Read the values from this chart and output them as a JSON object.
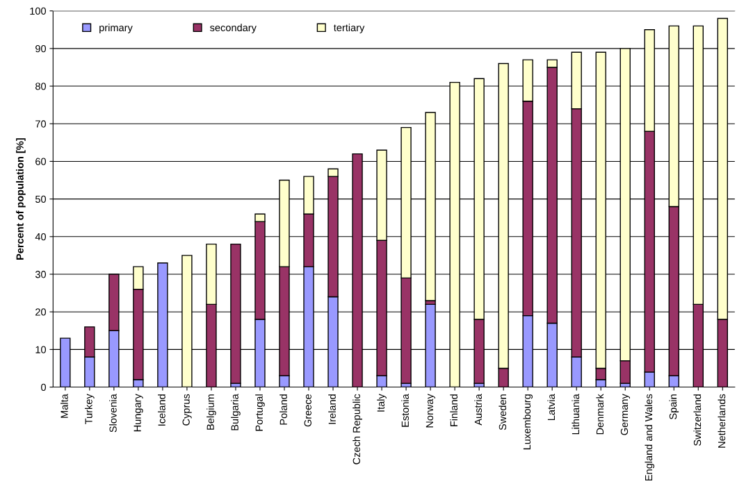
{
  "chart_data": {
    "type": "bar",
    "stacked": true,
    "ylabel": "Percent of population [%]",
    "categories": [
      "Malta",
      "Turkey",
      "Slovenia",
      "Hungary",
      "Iceland",
      "Cyprus",
      "Belgium",
      "Bulgaria",
      "Portugal",
      "Poland",
      "Greece",
      "Ireland",
      "Czech Republic",
      "Italy",
      "Estonia",
      "Norway",
      "Finland",
      "Austria",
      "Sweden",
      "Luxembourg",
      "Latvia",
      "Lithuania",
      "Denmark",
      "Germany",
      "England and Wales",
      "Spain",
      "Switzerland",
      "Netherlands"
    ],
    "series": [
      {
        "name": "primary",
        "color": "#9999ff",
        "values": [
          13,
          8,
          15,
          2,
          33,
          0,
          0,
          1,
          18,
          3,
          32,
          24,
          0,
          3,
          1,
          22,
          0,
          1,
          0,
          19,
          17,
          8,
          2,
          1,
          4,
          3,
          0,
          0
        ]
      },
      {
        "name": "secondary",
        "color": "#993366",
        "values": [
          0,
          8,
          15,
          24,
          0,
          0,
          22,
          37,
          26,
          29,
          14,
          32,
          62,
          36,
          28,
          1,
          0,
          17,
          5,
          57,
          68,
          66,
          3,
          6,
          64,
          45,
          22,
          18
        ]
      },
      {
        "name": "tertiary",
        "color": "#ffffcc",
        "values": [
          0,
          0,
          0,
          6,
          0,
          35,
          16,
          0,
          2,
          23,
          10,
          2,
          0,
          24,
          40,
          50,
          81,
          64,
          81,
          11,
          2,
          15,
          84,
          83,
          27,
          48,
          74,
          80
        ]
      }
    ],
    "ylim": [
      0,
      100
    ],
    "yticks": [
      0,
      10,
      20,
      30,
      40,
      50,
      60,
      70,
      80,
      90,
      100
    ],
    "grid": "y",
    "legend": "top left"
  }
}
